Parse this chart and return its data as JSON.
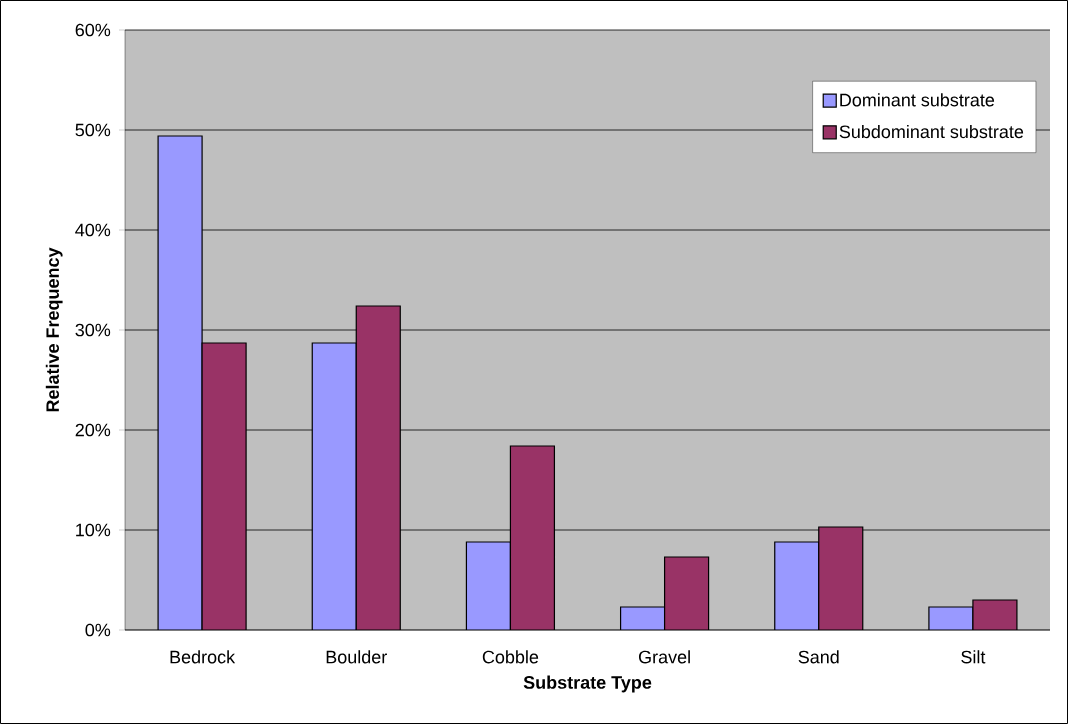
{
  "chart_data": {
    "type": "bar",
    "xlabel": "Substrate Type",
    "ylabel": "Relative Frequency",
    "categories": [
      "Bedrock",
      "Boulder",
      "Cobble",
      "Gravel",
      "Sand",
      "Silt"
    ],
    "series": [
      {
        "name": "Dominant substrate",
        "color": "#9999ff",
        "values": [
          49.4,
          28.7,
          8.8,
          2.3,
          8.8,
          2.3
        ]
      },
      {
        "name": "Subdominant substrate",
        "color": "#993366",
        "values": [
          28.7,
          32.4,
          18.4,
          7.3,
          10.3,
          3.0
        ]
      }
    ],
    "ylim": [
      0,
      60
    ],
    "yticks": [
      {
        "value": 0,
        "label": "0%"
      },
      {
        "value": 10,
        "label": "10%"
      },
      {
        "value": 20,
        "label": "20%"
      },
      {
        "value": 30,
        "label": "30%"
      },
      {
        "value": 40,
        "label": "40%"
      },
      {
        "value": 50,
        "label": "50%"
      },
      {
        "value": 60,
        "label": "60%"
      }
    ],
    "grid": "y",
    "legend": "top right"
  }
}
